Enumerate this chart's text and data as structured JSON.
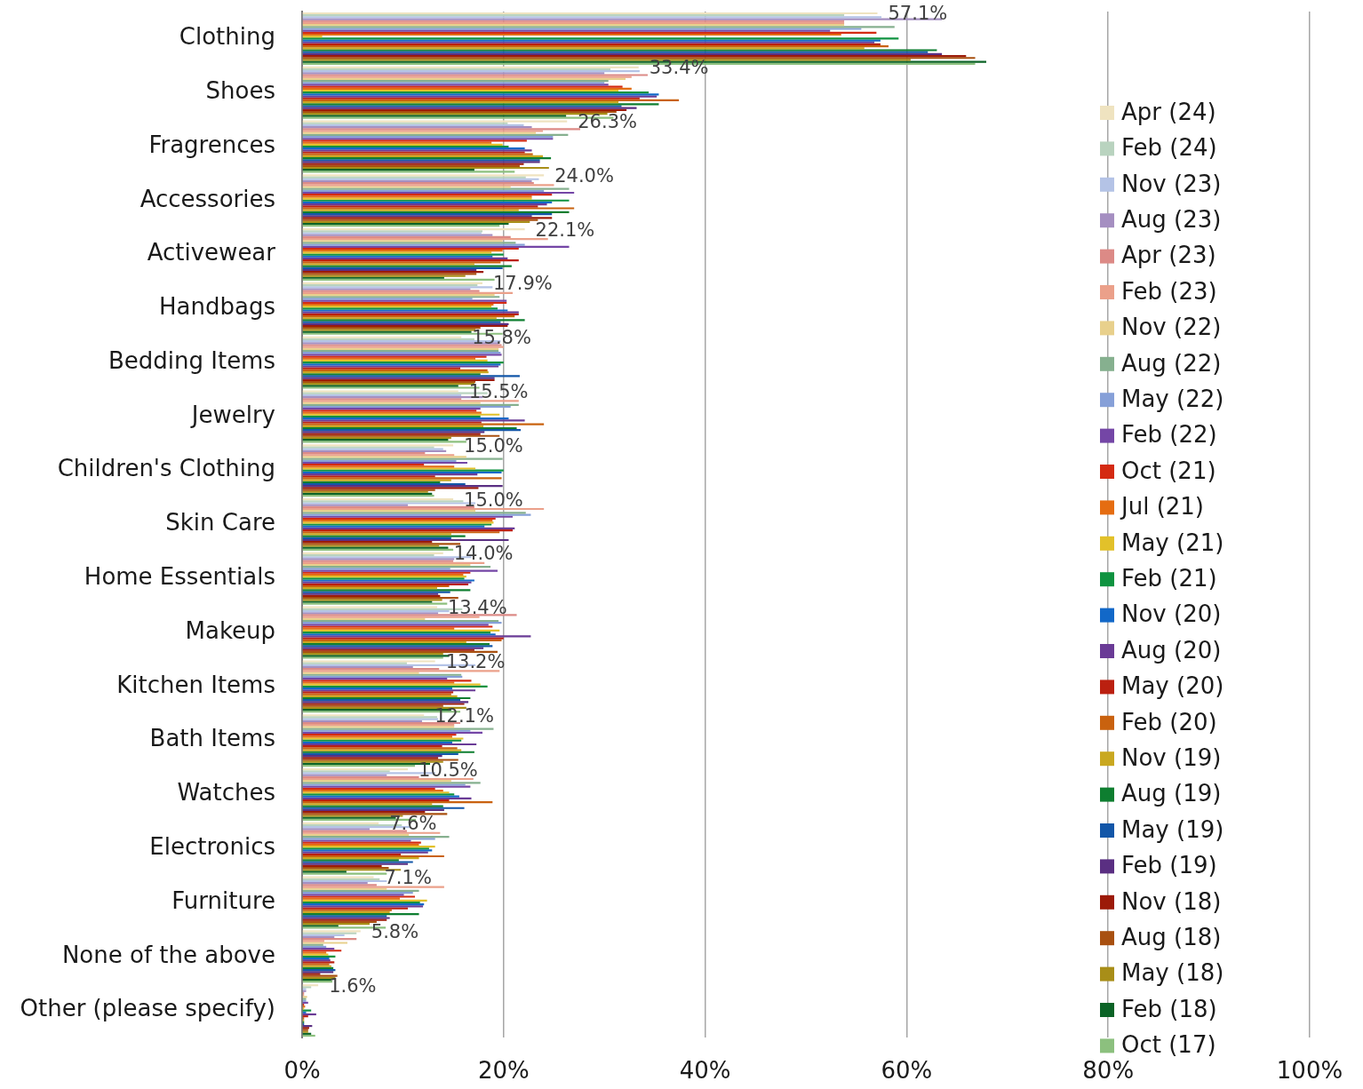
{
  "chart_data": {
    "type": "bar",
    "orientation": "horizontal",
    "categories": [
      "Clothing",
      "Shoes",
      "Fragrences",
      "Accessories",
      "Activewear",
      "Handbags",
      "Bedding Items",
      "Jewelry",
      "Children's Clothing",
      "Skin Care",
      "Home Essentials",
      "Makeup",
      "Kitchen Items",
      "Bath Items",
      "Watches",
      "Electronics",
      "Furniture",
      "None of the above",
      "Other (please specify)"
    ],
    "xlim": [
      0,
      100
    ],
    "xticks": [
      {
        "value": 0,
        "label": "0%"
      },
      {
        "value": 20,
        "label": "20%"
      },
      {
        "value": 40,
        "label": "40%"
      },
      {
        "value": 60,
        "label": "60%"
      },
      {
        "value": 80,
        "label": "80%"
      },
      {
        "value": 100,
        "label": "100%"
      }
    ],
    "grid": "x",
    "legend": "right",
    "series": [
      {
        "name": "Apr (24)",
        "color": "#efe3c0",
        "values": [
          57.1,
          33.4,
          26.3,
          24.0,
          22.1,
          17.9,
          15.8,
          15.5,
          15.0,
          15.0,
          14.0,
          13.4,
          13.2,
          12.1,
          10.5,
          7.6,
          7.1,
          5.8,
          1.6
        ],
        "value_labels": [
          "57.1%",
          "33.4%",
          "26.3%",
          "24.0%",
          "22.1%",
          "17.9%",
          "15.8%",
          "15.5%",
          "15.0%",
          "15.0%",
          "14.0%",
          "13.4%",
          "13.2%",
          "12.1%",
          "10.5%",
          "7.6%",
          "7.1%",
          "5.8%",
          "1.6%"
        ]
      },
      {
        "name": "Feb (24)",
        "color": "#b9d3bf",
        "values": [
          53.8,
          30.6,
          20.4,
          22.2,
          17.9,
          17.4,
          17.1,
          18.4,
          13.1,
          16.0,
          13.1,
          15.9,
          10.4,
          13.4,
          8.7,
          9.9,
          7.7,
          5.4,
          0.9
        ]
      },
      {
        "name": "Nov (23)",
        "color": "#b4c3e6",
        "values": [
          57.5,
          33.5,
          22.0,
          23.5,
          17.8,
          18.9,
          19.7,
          15.8,
          14.0,
          17.2,
          16.8,
          14.6,
          17.2,
          13.5,
          13.2,
          10.7,
          8.4,
          4.2,
          0.4
        ]
      },
      {
        "name": "Aug (23)",
        "color": "#a58fc1",
        "values": [
          63.5,
          30.0,
          22.8,
          22.8,
          18.9,
          16.7,
          19.5,
          17.9,
          14.3,
          10.5,
          15.1,
          13.5,
          11.0,
          11.9,
          8.4,
          6.7,
          6.5,
          3.2,
          0.4
        ]
      },
      {
        "name": "Apr (23)",
        "color": "#dc8a86",
        "values": [
          53.8,
          34.3,
          27.6,
          23.0,
          20.7,
          17.6,
          19.8,
          15.8,
          12.2,
          17.1,
          15.0,
          21.3,
          13.6,
          15.7,
          11.6,
          10.4,
          7.4,
          5.4,
          0.2
        ]
      },
      {
        "name": "Feb (23)",
        "color": "#eba08a",
        "values": [
          53.8,
          32.7,
          23.9,
          25.0,
          24.4,
          20.9,
          20.0,
          21.5,
          15.1,
          24.0,
          18.1,
          17.6,
          19.6,
          15.1,
          17.0,
          13.7,
          14.1,
          2.2,
          0.2
        ]
      },
      {
        "name": "Nov (22)",
        "color": "#e8d08c",
        "values": [
          53.8,
          32.1,
          23.2,
          20.7,
          19.9,
          19.1,
          19.5,
          17.7,
          16.3,
          17.2,
          16.7,
          12.2,
          11.6,
          15.1,
          14.8,
          10.6,
          8.4,
          4.5,
          0.5
        ]
      },
      {
        "name": "Aug (22)",
        "color": "#86b08f",
        "values": [
          58.8,
          30.4,
          26.4,
          26.5,
          21.2,
          19.6,
          19.5,
          21.5,
          19.9,
          22.2,
          18.7,
          19.5,
          15.8,
          19.0,
          17.7,
          14.6,
          11.6,
          2.1,
          0.4
        ]
      },
      {
        "name": "May (22)",
        "color": "#86a0d8",
        "values": [
          55.5,
          30.0,
          24.9,
          24.0,
          22.1,
          16.9,
          19.7,
          20.7,
          15.3,
          22.7,
          14.7,
          19.8,
          15.9,
          16.7,
          16.2,
          13.2,
          11.0,
          2.4,
          0.4
        ]
      },
      {
        "name": "Feb (22)",
        "color": "#7446a6",
        "values": [
          52.4,
          30.4,
          24.9,
          27.0,
          26.5,
          20.3,
          19.8,
          17.7,
          16.4,
          20.9,
          19.4,
          18.5,
          14.4,
          17.9,
          16.7,
          10.8,
          10.1,
          3.2,
          0.6
        ]
      },
      {
        "name": "Oct (21)",
        "color": "#d42a12",
        "values": [
          57.0,
          31.8,
          22.3,
          24.8,
          21.5,
          20.3,
          18.3,
          17.3,
          12.1,
          19.2,
          16.7,
          18.9,
          16.8,
          15.3,
          13.2,
          11.8,
          11.2,
          3.9,
          0.2
        ]
      },
      {
        "name": "Jul (21)",
        "color": "#e56d12",
        "values": [
          53.5,
          32.7,
          18.8,
          22.8,
          19.9,
          19.0,
          17.2,
          17.8,
          15.1,
          18.9,
          16.0,
          15.1,
          15.1,
          14.9,
          14.0,
          11.6,
          9.7,
          2.4,
          0.3
        ]
      },
      {
        "name": "May (21)",
        "color": "#e2c12a",
        "values": [
          2.0,
          31.4,
          19.9,
          22.8,
          18.8,
          18.8,
          18.4,
          19.6,
          17.2,
          19.0,
          16.3,
          19.6,
          17.7,
          16.0,
          14.6,
          13.2,
          12.4,
          2.6,
          0.2
        ]
      },
      {
        "name": "Feb (21)",
        "color": "#0f9340",
        "values": [
          59.2,
          34.4,
          20.5,
          26.5,
          20.0,
          19.4,
          20.0,
          17.7,
          20.0,
          18.8,
          16.1,
          18.7,
          18.4,
          15.8,
          15.1,
          12.6,
          11.7,
          3.3,
          0.9
        ]
      },
      {
        "name": "Nov (20)",
        "color": "#1268c8",
        "values": [
          57.4,
          35.4,
          22.1,
          24.8,
          18.9,
          20.4,
          19.7,
          20.5,
          19.8,
          18.1,
          17.1,
          19.2,
          14.9,
          14.9,
          15.6,
          12.9,
          12.1,
          2.7,
          0.4
        ]
      },
      {
        "name": "Aug (20)",
        "color": "#6a3b96",
        "values": [
          56.8,
          35.2,
          22.8,
          24.3,
          20.4,
          21.5,
          19.5,
          22.1,
          17.4,
          21.1,
          16.8,
          22.7,
          17.2,
          17.3,
          16.8,
          12.5,
          12.0,
          2.8,
          1.4
        ]
      },
      {
        "name": "May (20)",
        "color": "#bb2010",
        "values": [
          57.4,
          33.5,
          22.1,
          23.4,
          21.5,
          21.5,
          15.7,
          17.8,
          13.2,
          20.9,
          16.5,
          20.0,
          15.0,
          13.9,
          14.6,
          9.8,
          10.5,
          3.2,
          0.6
        ]
      },
      {
        "name": "Feb (20)",
        "color": "#c9620f",
        "values": [
          58.2,
          37.4,
          22.9,
          27.0,
          19.7,
          21.1,
          18.4,
          24.0,
          19.8,
          19.6,
          14.6,
          19.8,
          14.8,
          15.4,
          18.9,
          14.1,
          8.9,
          2.7,
          0.2
        ]
      },
      {
        "name": "Nov (19)",
        "color": "#c9a820",
        "values": [
          55.8,
          31.4,
          23.9,
          21.5,
          17.1,
          19.3,
          18.5,
          18.0,
          14.8,
          14.8,
          13.4,
          16.3,
          15.4,
          15.8,
          12.9,
          11.6,
          8.7,
          2.9,
          0.2
        ]
      },
      {
        "name": "Aug (19)",
        "color": "#0e7e30",
        "values": [
          63.0,
          35.4,
          24.7,
          26.5,
          20.8,
          22.1,
          17.7,
          21.3,
          13.7,
          16.2,
          16.7,
          18.6,
          16.7,
          17.1,
          14.0,
          9.6,
          11.6,
          3.1,
          0.2
        ]
      },
      {
        "name": "May (19)",
        "color": "#1256a8",
        "values": [
          62.1,
          31.7,
          23.6,
          24.8,
          19.9,
          19.7,
          21.6,
          21.7,
          16.2,
          14.8,
          14.7,
          18.9,
          15.7,
          15.5,
          16.1,
          11.0,
          8.4,
          3.3,
          0.2
        ]
      },
      {
        "name": "Feb (19)",
        "color": "#5a2f82",
        "values": [
          63.5,
          33.2,
          23.6,
          22.8,
          17.3,
          20.5,
          19.1,
          18.1,
          19.9,
          20.5,
          13.5,
          18.0,
          16.5,
          13.9,
          14.1,
          10.5,
          8.7,
          3.1,
          1.0
        ]
      },
      {
        "name": "Nov (18)",
        "color": "#9c1a08",
        "values": [
          65.9,
          32.2,
          22.0,
          24.8,
          18.0,
          20.4,
          19.1,
          17.7,
          17.5,
          12.9,
          13.7,
          17.1,
          16.1,
          13.5,
          12.2,
          7.9,
          8.4,
          1.8,
          0.7
        ]
      },
      {
        "name": "Aug (18)",
        "color": "#a85010",
        "values": [
          66.8,
          31.2,
          21.6,
          23.4,
          17.3,
          17.7,
          17.2,
          19.6,
          13.2,
          15.7,
          15.5,
          19.4,
          14.0,
          15.5,
          14.4,
          8.6,
          7.4,
          3.5,
          0.6
        ]
      },
      {
        "name": "May (18)",
        "color": "#a88e18",
        "values": [
          60.4,
          30.3,
          24.5,
          22.6,
          16.2,
          17.2,
          17.1,
          14.8,
          12.5,
          13.6,
          13.9,
          14.0,
          16.3,
          14.0,
          10.0,
          9.8,
          6.7,
          3.3,
          0.6
        ]
      },
      {
        "name": "Feb (18)",
        "color": "#0b6326",
        "values": [
          67.9,
          26.2,
          17.1,
          20.5,
          14.1,
          16.8,
          15.5,
          14.5,
          12.9,
          14.5,
          12.9,
          14.6,
          14.8,
          12.7,
          9.3,
          4.4,
          3.6,
          2.9,
          0.9
        ]
      },
      {
        "name": "Oct (17)",
        "color": "#8cc07e",
        "values": [
          66.8,
          30.9,
          21.1,
          19.6,
          19.1,
          19.9,
          17.6,
          16.3,
          13.1,
          15.0,
          14.4,
          14.0,
          15.7,
          11.2,
          11.3,
          8.4,
          8.3,
          3.0,
          1.3
        ]
      }
    ]
  }
}
